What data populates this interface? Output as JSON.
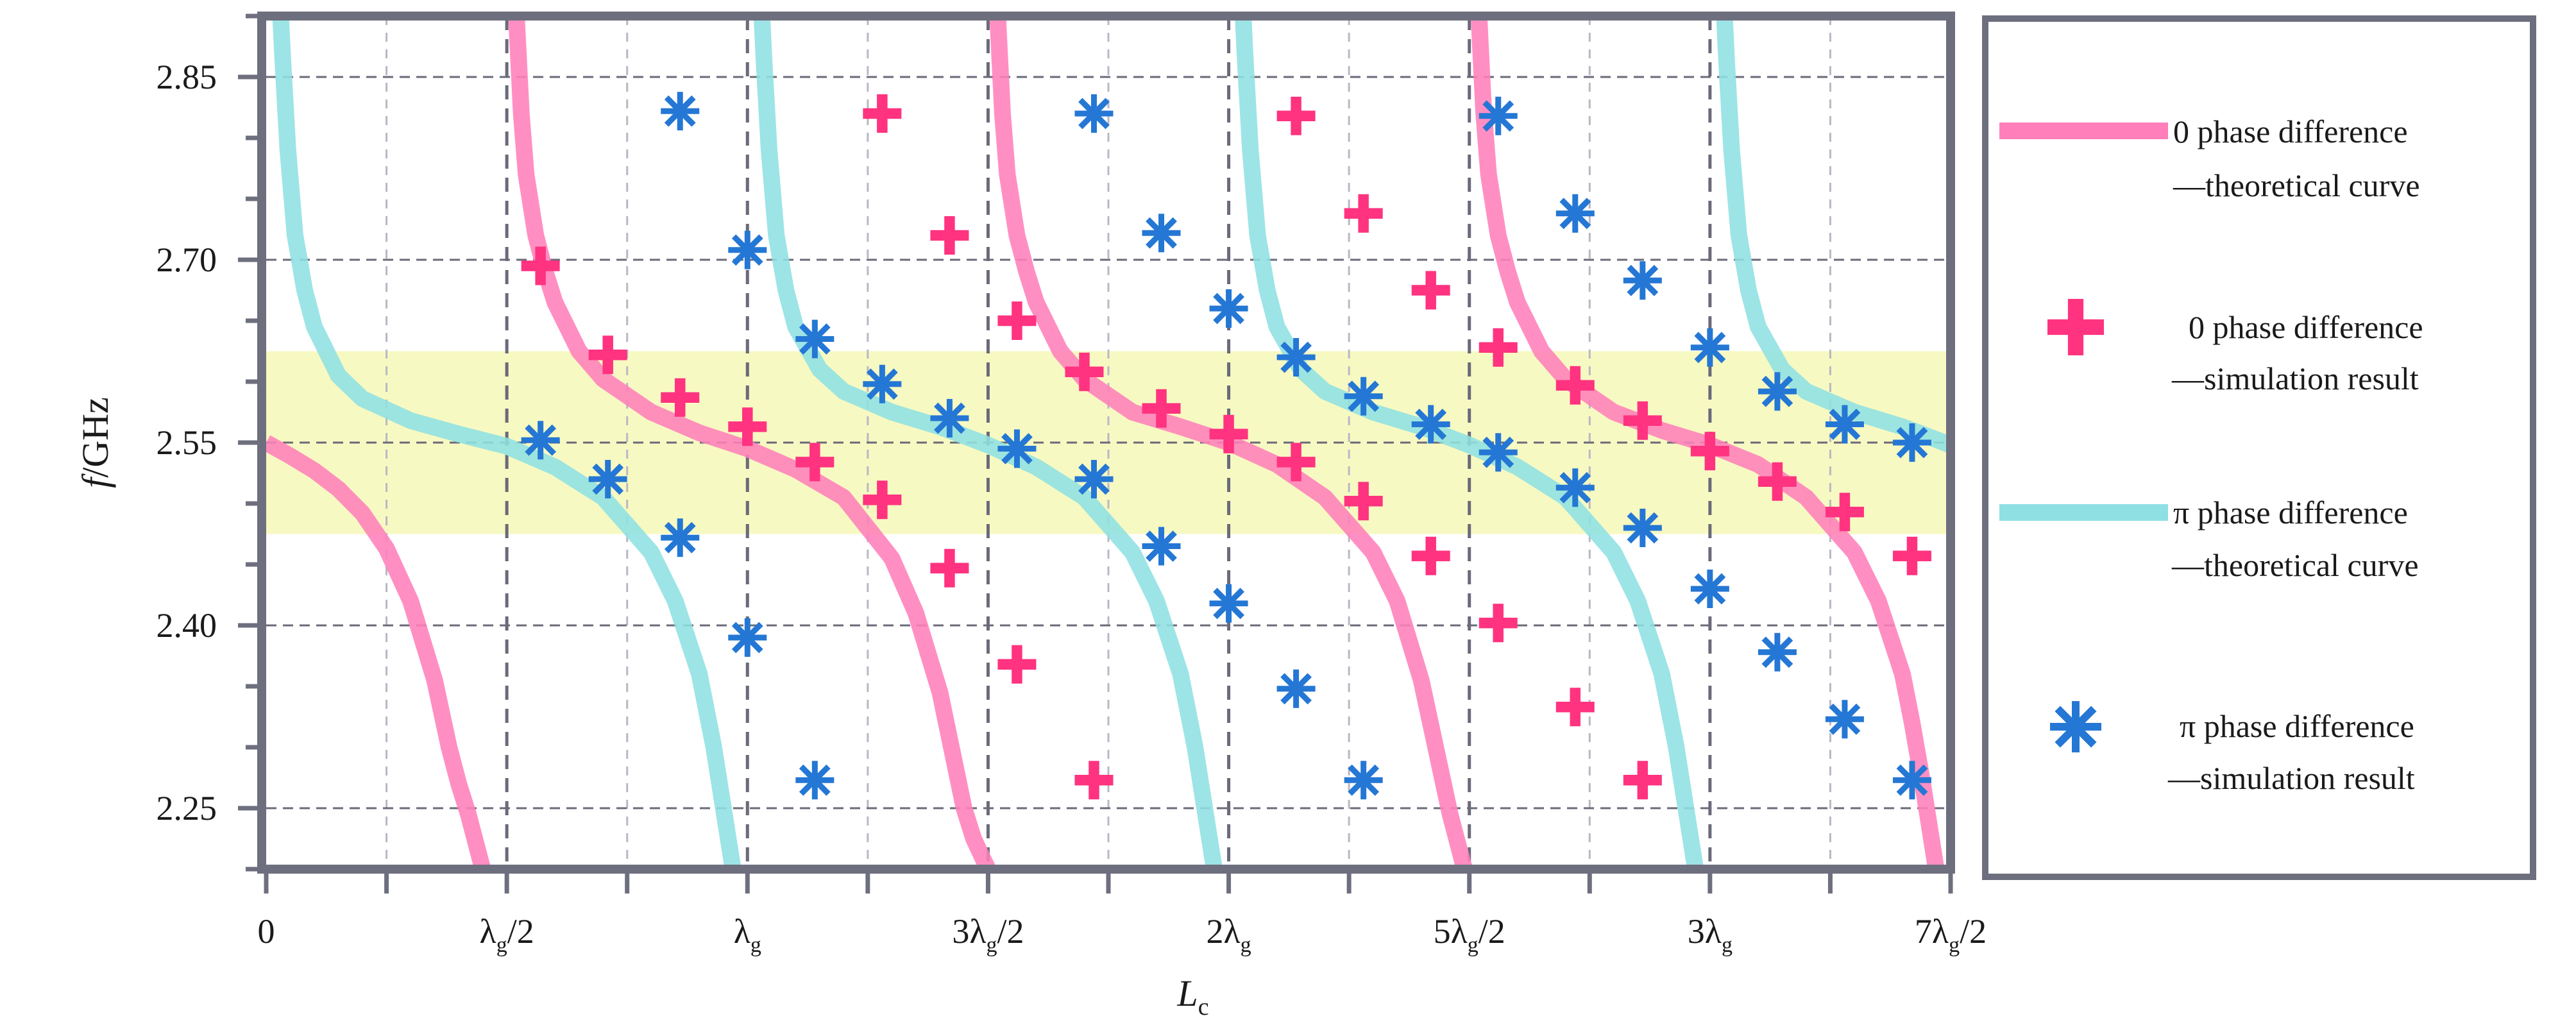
{
  "chart_data": {
    "type": "line",
    "xlabel": "L",
    "xlabel_sub": "c",
    "ylabel_italic": "f",
    "ylabel_rest": "/GHz",
    "xlim": [
      0,
      3.5
    ],
    "ylim": [
      2.2,
      2.9
    ],
    "x_tick_values": [
      0,
      0.5,
      1,
      1.5,
      2,
      2.5,
      3,
      3.5
    ],
    "x_ticks": [
      {
        "pre": "0",
        "sub": "",
        "post": ""
      },
      {
        "pre": "λ",
        "sub": "g",
        "post": "/2"
      },
      {
        "pre": "λ",
        "sub": "g",
        "post": ""
      },
      {
        "pre": "3λ",
        "sub": "g",
        "post": "/2"
      },
      {
        "pre": "2λ",
        "sub": "g",
        "post": ""
      },
      {
        "pre": "5λ",
        "sub": "g",
        "post": "/2"
      },
      {
        "pre": "3λ",
        "sub": "g",
        "post": ""
      },
      {
        "pre": "7λ",
        "sub": "g",
        "post": "/2"
      }
    ],
    "y_ticks": [
      2.25,
      2.4,
      2.55,
      2.7,
      2.85
    ],
    "y_tick_labels": [
      "2.25",
      "2.40",
      "2.55",
      "2.70",
      "2.85"
    ],
    "highlight_band": [
      2.475,
      2.625
    ],
    "grid": true,
    "legend_position": "right",
    "colors": {
      "zero_curve": "#ff7fba",
      "pi_curve": "#8fe0e3",
      "zero_marker": "#ff3380",
      "pi_marker": "#2477d4",
      "band": "#f7f9c2",
      "frame": "#6e6f7e",
      "grid_major": "#6a6a7a",
      "grid_minor": "#b8b8c4"
    },
    "series": [
      {
        "name": "0 phase difference —theoretical curve",
        "kind": "curve",
        "branches": [
          {
            "x": [
              0.0,
              0.05,
              0.1,
              0.15,
              0.2,
              0.25,
              0.3,
              0.35,
              0.38,
              0.4,
              0.42,
              0.44,
              0.45
            ],
            "y": [
              2.55,
              2.539,
              2.527,
              2.512,
              2.492,
              2.463,
              2.42,
              2.355,
              2.3,
              2.27,
              2.245,
              2.215,
              2.2
            ]
          },
          {
            "x": [
              0.52,
              0.53,
              0.54,
              0.56,
              0.58,
              0.6,
              0.65,
              0.7,
              0.8,
              0.9,
              1.0,
              1.1,
              1.2,
              1.3,
              1.35,
              1.4,
              1.45,
              1.47,
              1.49,
              1.5
            ],
            "y": [
              2.9,
              2.82,
              2.77,
              2.72,
              2.69,
              2.665,
              2.625,
              2.602,
              2.575,
              2.558,
              2.545,
              2.528,
              2.505,
              2.455,
              2.41,
              2.345,
              2.25,
              2.225,
              2.208,
              2.2
            ]
          },
          {
            "x": [
              1.52,
              1.53,
              1.54,
              1.56,
              1.58,
              1.6,
              1.65,
              1.7,
              1.8,
              1.9,
              2.0,
              2.1,
              2.2,
              2.3,
              2.35,
              2.4,
              2.43,
              2.46,
              2.48,
              2.49
            ],
            "y": [
              2.9,
              2.82,
              2.77,
              2.72,
              2.69,
              2.665,
              2.625,
              2.602,
              2.575,
              2.563,
              2.55,
              2.532,
              2.505,
              2.46,
              2.42,
              2.355,
              2.3,
              2.245,
              2.215,
              2.2
            ]
          },
          {
            "x": [
              2.52,
              2.53,
              2.54,
              2.56,
              2.58,
              2.6,
              2.65,
              2.7,
              2.8,
              2.9,
              3.0,
              3.1,
              3.2,
              3.3,
              3.35,
              3.4,
              3.42,
              3.44,
              3.46,
              3.47
            ],
            "y": [
              2.9,
              2.82,
              2.77,
              2.72,
              2.69,
              2.665,
              2.625,
              2.602,
              2.575,
              2.56,
              2.548,
              2.532,
              2.505,
              2.46,
              2.42,
              2.36,
              2.32,
              2.275,
              2.225,
              2.2
            ]
          }
        ]
      },
      {
        "name": "0 phase difference —simulation result",
        "kind": "plus",
        "points": [
          [
            0.57,
            2.695
          ],
          [
            0.71,
            2.622
          ],
          [
            0.86,
            2.587
          ],
          [
            1.0,
            2.563
          ],
          [
            1.14,
            2.534
          ],
          [
            1.28,
            2.503
          ],
          [
            1.42,
            2.447
          ],
          [
            1.56,
            2.368
          ],
          [
            1.72,
            2.273
          ],
          [
            1.28,
            2.82
          ],
          [
            1.42,
            2.72
          ],
          [
            1.56,
            2.65
          ],
          [
            1.7,
            2.608
          ],
          [
            1.86,
            2.578
          ],
          [
            2.0,
            2.557
          ],
          [
            2.14,
            2.534
          ],
          [
            2.28,
            2.502
          ],
          [
            2.42,
            2.457
          ],
          [
            2.56,
            2.402
          ],
          [
            2.72,
            2.333
          ],
          [
            2.86,
            2.273
          ],
          [
            2.14,
            2.818
          ],
          [
            2.28,
            2.738
          ],
          [
            2.42,
            2.675
          ],
          [
            2.56,
            2.628
          ],
          [
            2.72,
            2.597
          ],
          [
            2.86,
            2.568
          ],
          [
            3.0,
            2.543
          ],
          [
            3.14,
            2.518
          ],
          [
            3.28,
            2.493
          ],
          [
            3.42,
            2.457
          ]
        ]
      },
      {
        "name": "π phase difference —theoretical curve",
        "kind": "curve",
        "branches": [
          {
            "x": [
              0.03,
              0.035,
              0.045,
              0.06,
              0.08,
              0.1,
              0.15,
              0.2,
              0.3,
              0.4,
              0.5,
              0.6,
              0.7,
              0.8,
              0.85,
              0.9,
              0.93,
              0.95,
              0.96,
              0.97
            ],
            "y": [
              2.9,
              2.86,
              2.79,
              2.72,
              2.675,
              2.645,
              2.605,
              2.586,
              2.568,
              2.557,
              2.547,
              2.53,
              2.505,
              2.46,
              2.42,
              2.36,
              2.3,
              2.25,
              2.225,
              2.2
            ]
          },
          {
            "x": [
              1.03,
              1.035,
              1.045,
              1.06,
              1.08,
              1.1,
              1.15,
              1.2,
              1.3,
              1.4,
              1.5,
              1.6,
              1.7,
              1.8,
              1.85,
              1.9,
              1.93,
              1.95,
              1.96,
              1.97
            ],
            "y": [
              2.9,
              2.86,
              2.79,
              2.72,
              2.675,
              2.645,
              2.61,
              2.592,
              2.575,
              2.563,
              2.548,
              2.53,
              2.505,
              2.46,
              2.42,
              2.36,
              2.3,
              2.25,
              2.225,
              2.2
            ]
          },
          {
            "x": [
              2.03,
              2.035,
              2.045,
              2.06,
              2.08,
              2.1,
              2.15,
              2.2,
              2.3,
              2.4,
              2.5,
              2.6,
              2.7,
              2.8,
              2.85,
              2.9,
              2.93,
              2.95,
              2.96,
              2.97
            ],
            "y": [
              2.9,
              2.86,
              2.79,
              2.72,
              2.675,
              2.645,
              2.61,
              2.592,
              2.575,
              2.563,
              2.548,
              2.53,
              2.505,
              2.46,
              2.42,
              2.36,
              2.3,
              2.25,
              2.225,
              2.2
            ]
          },
          {
            "x": [
              3.03,
              3.035,
              3.045,
              3.06,
              3.08,
              3.1,
              3.15,
              3.2,
              3.3,
              3.4,
              3.5
            ],
            "y": [
              2.9,
              2.86,
              2.79,
              2.72,
              2.675,
              2.645,
              2.61,
              2.592,
              2.575,
              2.563,
              2.548
            ]
          }
        ]
      },
      {
        "name": "π phase difference —simulation result",
        "kind": "asterisk",
        "points": [
          [
            0.86,
            2.822
          ],
          [
            1.0,
            2.708
          ],
          [
            1.14,
            2.635
          ],
          [
            1.28,
            2.598
          ],
          [
            1.42,
            2.57
          ],
          [
            1.56,
            2.545
          ],
          [
            1.72,
            2.52
          ],
          [
            1.86,
            2.465
          ],
          [
            2.0,
            2.418
          ],
          [
            2.14,
            2.348
          ],
          [
            2.28,
            2.273
          ],
          [
            0.57,
            2.552
          ],
          [
            0.71,
            2.52
          ],
          [
            0.86,
            2.472
          ],
          [
            1.0,
            2.39
          ],
          [
            1.14,
            2.273
          ],
          [
            1.72,
            2.82
          ],
          [
            1.86,
            2.722
          ],
          [
            2.0,
            2.66
          ],
          [
            2.14,
            2.62
          ],
          [
            2.28,
            2.588
          ],
          [
            2.42,
            2.565
          ],
          [
            2.56,
            2.542
          ],
          [
            2.72,
            2.513
          ],
          [
            2.86,
            2.48
          ],
          [
            3.0,
            2.43
          ],
          [
            3.14,
            2.378
          ],
          [
            3.28,
            2.323
          ],
          [
            3.42,
            2.273
          ],
          [
            2.56,
            2.818
          ],
          [
            2.72,
            2.738
          ],
          [
            2.86,
            2.683
          ],
          [
            3.0,
            2.628
          ],
          [
            3.14,
            2.592
          ],
          [
            3.28,
            2.565
          ],
          [
            3.42,
            2.55
          ]
        ]
      }
    ]
  },
  "legend": {
    "items": [
      {
        "line1": "0 phase difference",
        "line2": "—theoretical curve"
      },
      {
        "line1": "0 phase difference",
        "line2": "—simulation result"
      },
      {
        "line1": "π phase difference",
        "line2": "—theoretical curve"
      },
      {
        "line1": "π phase difference",
        "line2": "—simulation result"
      }
    ]
  }
}
